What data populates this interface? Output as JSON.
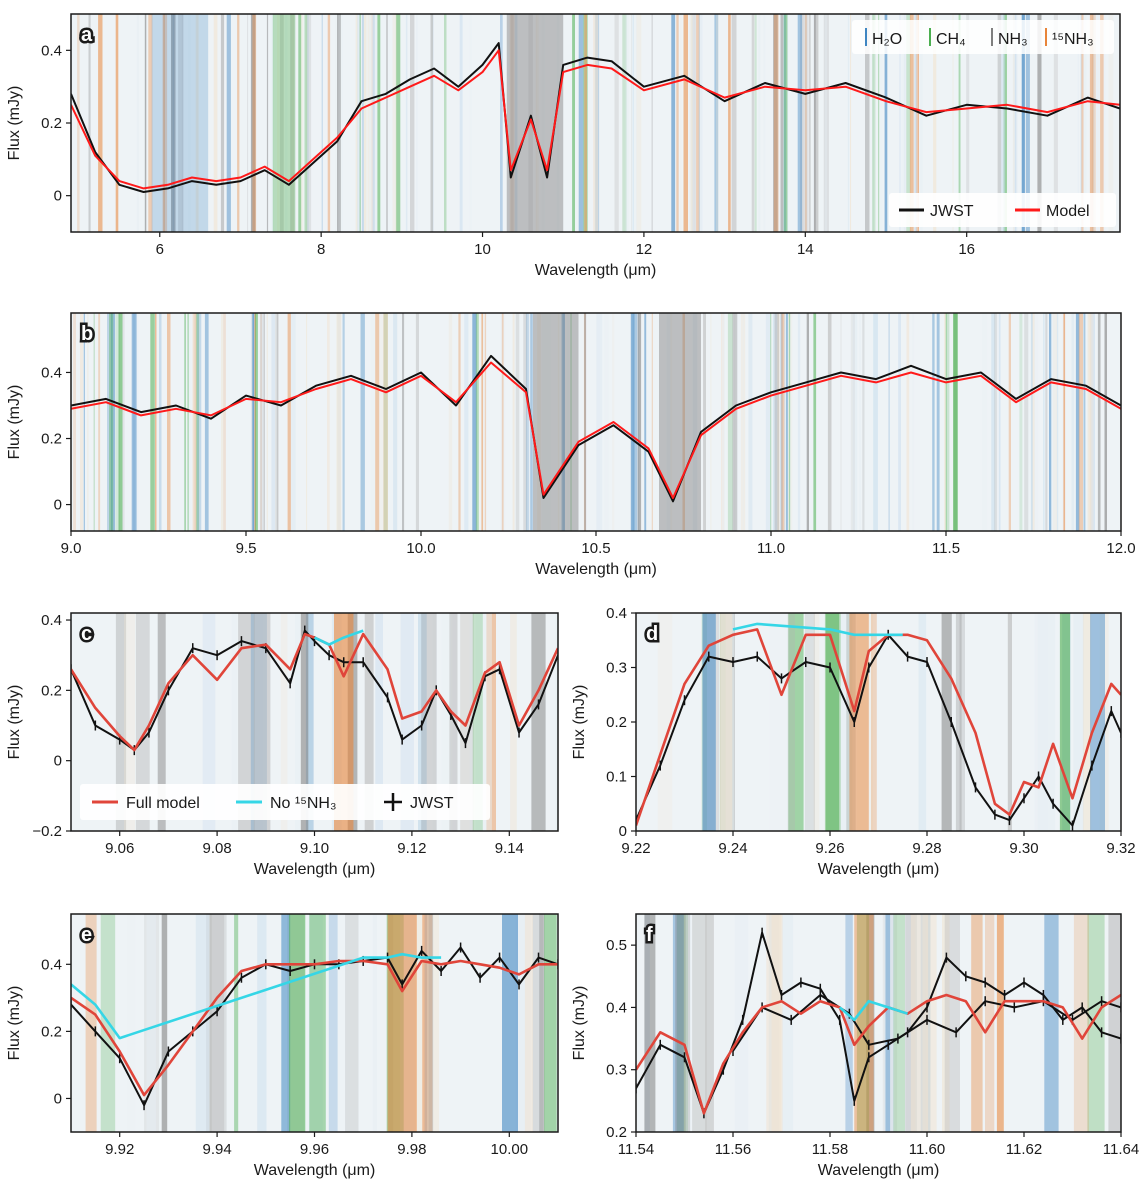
{
  "colors": {
    "h2o": "#3f86c2",
    "ch4": "#4caf50",
    "nh3": "#7f7f7f",
    "n15h3": "#e8853a",
    "jwst": "#111111",
    "model": "#ff1a1a",
    "full_model": "#e0453a",
    "no15": "#35d6e6"
  },
  "chart_data": [
    {
      "panel": "a",
      "type": "line",
      "xlabel": "Wavelength (μm)",
      "ylabel": "Flux (mJy)",
      "xlim": [
        4.9,
        17.9
      ],
      "ylim": [
        -0.1,
        0.5
      ],
      "xticks": [
        "6",
        "8",
        "10",
        "12",
        "14",
        "16"
      ],
      "yticks": [
        "0",
        "0.2",
        "0.4"
      ],
      "top_legend": [
        "H₂O",
        "CH₄",
        "NH₃",
        "¹⁵NH₃"
      ],
      "legend": [
        "JWST",
        "Model"
      ],
      "series": [
        {
          "name": "JWST",
          "x": [
            4.9,
            5.2,
            5.5,
            5.8,
            6.1,
            6.4,
            6.7,
            7.0,
            7.3,
            7.6,
            7.9,
            8.2,
            8.5,
            8.8,
            9.1,
            9.4,
            9.7,
            10.0,
            10.2,
            10.35,
            10.6,
            10.8,
            11.0,
            11.3,
            11.6,
            12.0,
            12.5,
            13.0,
            13.5,
            14.0,
            14.5,
            15.0,
            15.5,
            16.0,
            16.5,
            17.0,
            17.5,
            17.9
          ],
          "y": [
            0.28,
            0.12,
            0.03,
            0.01,
            0.02,
            0.04,
            0.03,
            0.04,
            0.07,
            0.03,
            0.09,
            0.15,
            0.26,
            0.28,
            0.32,
            0.35,
            0.3,
            0.36,
            0.42,
            0.05,
            0.22,
            0.05,
            0.36,
            0.38,
            0.37,
            0.3,
            0.33,
            0.26,
            0.31,
            0.28,
            0.31,
            0.27,
            0.22,
            0.25,
            0.24,
            0.22,
            0.27,
            0.24
          ]
        },
        {
          "name": "Model",
          "x": [
            4.9,
            5.2,
            5.5,
            5.8,
            6.1,
            6.4,
            6.7,
            7.0,
            7.3,
            7.6,
            7.9,
            8.2,
            8.5,
            8.8,
            9.1,
            9.4,
            9.7,
            10.0,
            10.2,
            10.35,
            10.6,
            10.8,
            11.0,
            11.3,
            11.6,
            12.0,
            12.5,
            13.0,
            13.5,
            14.0,
            14.5,
            15.0,
            15.5,
            16.0,
            16.5,
            17.0,
            17.5,
            17.9
          ],
          "y": [
            0.25,
            0.11,
            0.04,
            0.02,
            0.03,
            0.05,
            0.04,
            0.05,
            0.08,
            0.04,
            0.1,
            0.16,
            0.24,
            0.27,
            0.3,
            0.33,
            0.29,
            0.34,
            0.4,
            0.07,
            0.21,
            0.07,
            0.34,
            0.36,
            0.35,
            0.29,
            0.32,
            0.27,
            0.3,
            0.29,
            0.3,
            0.26,
            0.23,
            0.24,
            0.25,
            0.23,
            0.26,
            0.25
          ]
        }
      ]
    },
    {
      "panel": "b",
      "type": "line",
      "xlabel": "Wavelength (μm)",
      "ylabel": "Flux (mJy)",
      "xlim": [
        9.0,
        12.0
      ],
      "ylim": [
        -0.08,
        0.58
      ],
      "xticks": [
        "9.0",
        "9.5",
        "10.0",
        "10.5",
        "11.0",
        "11.5",
        "12.0"
      ],
      "yticks": [
        "0",
        "0.2",
        "0.4"
      ],
      "series": [
        {
          "name": "JWST",
          "x": [
            9.0,
            9.1,
            9.2,
            9.3,
            9.4,
            9.5,
            9.6,
            9.7,
            9.8,
            9.9,
            10.0,
            10.1,
            10.2,
            10.3,
            10.35,
            10.45,
            10.55,
            10.65,
            10.72,
            10.8,
            10.9,
            11.0,
            11.1,
            11.2,
            11.3,
            11.4,
            11.5,
            11.6,
            11.7,
            11.8,
            11.9,
            12.0
          ],
          "y": [
            0.3,
            0.32,
            0.28,
            0.3,
            0.26,
            0.33,
            0.3,
            0.36,
            0.39,
            0.35,
            0.4,
            0.3,
            0.45,
            0.35,
            0.02,
            0.18,
            0.24,
            0.16,
            0.01,
            0.22,
            0.3,
            0.34,
            0.37,
            0.4,
            0.38,
            0.42,
            0.38,
            0.4,
            0.32,
            0.38,
            0.36,
            0.3
          ]
        },
        {
          "name": "Model",
          "x": [
            9.0,
            9.1,
            9.2,
            9.3,
            9.4,
            9.5,
            9.6,
            9.7,
            9.8,
            9.9,
            10.0,
            10.1,
            10.2,
            10.3,
            10.35,
            10.45,
            10.55,
            10.65,
            10.72,
            10.8,
            10.9,
            11.0,
            11.1,
            11.2,
            11.3,
            11.4,
            11.5,
            11.6,
            11.7,
            11.8,
            11.9,
            12.0
          ],
          "y": [
            0.29,
            0.31,
            0.27,
            0.29,
            0.27,
            0.32,
            0.31,
            0.35,
            0.38,
            0.34,
            0.39,
            0.31,
            0.43,
            0.34,
            0.03,
            0.19,
            0.25,
            0.17,
            0.02,
            0.21,
            0.29,
            0.33,
            0.36,
            0.39,
            0.37,
            0.4,
            0.37,
            0.39,
            0.31,
            0.37,
            0.35,
            0.29
          ]
        }
      ]
    },
    {
      "panel": "c",
      "type": "line",
      "xlabel": "Wavelength (μm)",
      "ylabel": "Flux (mJy)",
      "xlim": [
        9.05,
        9.15
      ],
      "ylim": [
        -0.2,
        0.42
      ],
      "xticks": [
        "9.06",
        "9.08",
        "9.10",
        "9.12",
        "9.14"
      ],
      "yticks": [
        "−0.2",
        "0",
        "0.2",
        "0.4"
      ],
      "legend": [
        "Full model",
        "No ¹⁵NH₃",
        "JWST"
      ],
      "series": [
        {
          "name": "JWST",
          "x": [
            9.05,
            9.055,
            9.06,
            9.063,
            9.066,
            9.07,
            9.075,
            9.08,
            9.085,
            9.09,
            9.095,
            9.098,
            9.1,
            9.103,
            9.106,
            9.11,
            9.115,
            9.118,
            9.122,
            9.125,
            9.128,
            9.131,
            9.135,
            9.138,
            9.142,
            9.146,
            9.15
          ],
          "y": [
            0.26,
            0.1,
            0.06,
            0.03,
            0.08,
            0.2,
            0.32,
            0.3,
            0.34,
            0.32,
            0.22,
            0.37,
            0.34,
            0.3,
            0.28,
            0.28,
            0.18,
            0.06,
            0.1,
            0.2,
            0.13,
            0.05,
            0.24,
            0.26,
            0.08,
            0.16,
            0.3
          ]
        },
        {
          "name": "Full model",
          "x": [
            9.05,
            9.055,
            9.06,
            9.063,
            9.066,
            9.07,
            9.075,
            9.08,
            9.085,
            9.09,
            9.095,
            9.098,
            9.1,
            9.103,
            9.106,
            9.11,
            9.115,
            9.118,
            9.122,
            9.125,
            9.128,
            9.131,
            9.135,
            9.138,
            9.142,
            9.146,
            9.15
          ],
          "y": [
            0.26,
            0.15,
            0.07,
            0.03,
            0.1,
            0.22,
            0.3,
            0.23,
            0.32,
            0.33,
            0.26,
            0.36,
            0.35,
            0.33,
            0.24,
            0.36,
            0.26,
            0.12,
            0.14,
            0.2,
            0.14,
            0.1,
            0.25,
            0.28,
            0.1,
            0.2,
            0.32
          ]
        },
        {
          "name": "No ¹⁵NH₃",
          "x": [
            9.1,
            9.103,
            9.106,
            9.11
          ],
          "y": [
            0.35,
            0.33,
            0.35,
            0.37
          ]
        }
      ]
    },
    {
      "panel": "d",
      "type": "line",
      "xlabel": "Wavelength (μm)",
      "ylabel": "Flux (mJy)",
      "xlim": [
        9.22,
        9.32
      ],
      "ylim": [
        0,
        0.4
      ],
      "xticks": [
        "9.22",
        "9.24",
        "9.26",
        "9.28",
        "9.30",
        "9.32"
      ],
      "yticks": [
        "0",
        "0.1",
        "0.2",
        "0.3",
        "0.4"
      ],
      "series": [
        {
          "name": "JWST",
          "x": [
            9.22,
            9.225,
            9.23,
            9.235,
            9.24,
            9.245,
            9.25,
            9.255,
            9.26,
            9.265,
            9.268,
            9.272,
            9.276,
            9.28,
            9.285,
            9.29,
            9.294,
            9.297,
            9.3,
            9.303,
            9.306,
            9.31,
            9.314,
            9.318,
            9.32
          ],
          "y": [
            0.02,
            0.12,
            0.24,
            0.32,
            0.31,
            0.32,
            0.28,
            0.31,
            0.3,
            0.2,
            0.3,
            0.36,
            0.32,
            0.31,
            0.2,
            0.08,
            0.03,
            0.02,
            0.06,
            0.1,
            0.05,
            0.01,
            0.12,
            0.22,
            0.18
          ]
        },
        {
          "name": "Full model",
          "x": [
            9.22,
            9.225,
            9.23,
            9.235,
            9.24,
            9.245,
            9.25,
            9.255,
            9.26,
            9.265,
            9.268,
            9.272,
            9.276,
            9.28,
            9.285,
            9.29,
            9.294,
            9.297,
            9.3,
            9.303,
            9.306,
            9.31,
            9.314,
            9.318,
            9.32
          ],
          "y": [
            0.01,
            0.14,
            0.27,
            0.34,
            0.36,
            0.37,
            0.25,
            0.36,
            0.36,
            0.22,
            0.33,
            0.36,
            0.36,
            0.35,
            0.28,
            0.18,
            0.05,
            0.03,
            0.09,
            0.08,
            0.16,
            0.06,
            0.18,
            0.27,
            0.25
          ]
        },
        {
          "name": "No ¹⁵NH₃",
          "x": [
            9.24,
            9.245,
            9.26,
            9.265,
            9.27,
            9.275
          ],
          "y": [
            0.37,
            0.38,
            0.37,
            0.36,
            0.36,
            0.36
          ]
        }
      ]
    },
    {
      "panel": "e",
      "type": "line",
      "xlabel": "Wavelength (μm)",
      "ylabel": "Flux (mJy)",
      "xlim": [
        9.91,
        10.01
      ],
      "ylim": [
        -0.1,
        0.55
      ],
      "xticks": [
        "9.92",
        "9.94",
        "9.96",
        "9.98",
        "10.00"
      ],
      "yticks": [
        "0",
        "0.2",
        "0.4"
      ],
      "series": [
        {
          "name": "JWST",
          "x": [
            9.91,
            9.915,
            9.92,
            9.925,
            9.93,
            9.935,
            9.94,
            9.945,
            9.95,
            9.955,
            9.96,
            9.965,
            9.97,
            9.975,
            9.978,
            9.982,
            9.986,
            9.99,
            9.994,
            9.998,
            10.002,
            10.006,
            10.01
          ],
          "y": [
            0.28,
            0.2,
            0.12,
            -0.02,
            0.14,
            0.2,
            0.26,
            0.36,
            0.4,
            0.38,
            0.4,
            0.4,
            0.41,
            0.42,
            0.34,
            0.44,
            0.38,
            0.45,
            0.36,
            0.42,
            0.34,
            0.42,
            0.4
          ]
        },
        {
          "name": "Full model",
          "x": [
            9.91,
            9.915,
            9.92,
            9.925,
            9.93,
            9.935,
            9.94,
            9.945,
            9.95,
            9.955,
            9.96,
            9.965,
            9.97,
            9.975,
            9.978,
            9.982,
            9.986,
            9.99,
            9.994,
            9.998,
            10.002,
            10.006,
            10.01
          ],
          "y": [
            0.3,
            0.25,
            0.14,
            0.01,
            0.1,
            0.2,
            0.3,
            0.38,
            0.4,
            0.4,
            0.4,
            0.41,
            0.41,
            0.4,
            0.32,
            0.41,
            0.4,
            0.41,
            0.4,
            0.39,
            0.37,
            0.4,
            0.4
          ]
        },
        {
          "name": "No ¹⁵NH₃",
          "x": [
            9.91,
            9.915,
            9.92,
            9.97,
            9.975,
            9.978,
            9.982,
            9.986
          ],
          "y": [
            0.34,
            0.28,
            0.18,
            0.42,
            0.42,
            0.43,
            0.42,
            0.42
          ]
        }
      ]
    },
    {
      "panel": "f",
      "type": "line",
      "xlabel": "Wavelength (μm)",
      "ylabel": "Flux (mJy)",
      "xlim": [
        11.54,
        11.64
      ],
      "ylim": [
        0.2,
        0.55
      ],
      "xticks": [
        "11.54",
        "11.56",
        "11.58",
        "11.60",
        "11.62",
        "11.64"
      ],
      "yticks": [
        "0.2",
        "0.3",
        "0.4",
        "0.5"
      ],
      "series": [
        {
          "name": "JWST",
          "x": [
            11.54,
            11.545,
            11.55,
            11.554,
            11.558,
            11.562,
            11.566,
            11.57,
            11.574,
            11.578,
            11.582,
            11.585,
            11.588,
            11.592,
            11.596,
            11.6,
            11.604,
            11.608,
            11.612,
            11.616,
            11.62,
            11.624,
            11.628,
            11.632,
            11.636,
            11.64
          ],
          "y": [
            0.27,
            0.34,
            0.32,
            0.23,
            0.3,
            0.38,
            0.52,
            0.42,
            0.44,
            0.43,
            0.38,
            0.25,
            0.32,
            0.34,
            0.36,
            0.4,
            0.48,
            0.45,
            0.44,
            0.42,
            0.44,
            0.42,
            0.38,
            0.4,
            0.36,
            0.35
          ]
        },
        {
          "name": "JWST",
          "x": [
            11.56,
            11.566,
            11.572,
            11.578,
            11.584,
            11.588,
            11.594,
            11.6,
            11.606,
            11.612,
            11.618,
            11.624,
            11.63,
            11.636,
            11.64
          ],
          "y": [
            0.33,
            0.4,
            0.38,
            0.42,
            0.39,
            0.34,
            0.35,
            0.38,
            0.36,
            0.41,
            0.4,
            0.41,
            0.38,
            0.41,
            0.4
          ]
        },
        {
          "name": "Full model",
          "x": [
            11.54,
            11.545,
            11.55,
            11.554,
            11.558,
            11.562,
            11.566,
            11.57,
            11.574,
            11.578,
            11.582,
            11.585,
            11.588,
            11.592,
            11.596,
            11.6,
            11.604,
            11.608,
            11.612,
            11.616,
            11.62,
            11.624,
            11.628,
            11.632,
            11.636,
            11.64
          ],
          "y": [
            0.3,
            0.36,
            0.34,
            0.23,
            0.31,
            0.36,
            0.4,
            0.41,
            0.39,
            0.41,
            0.4,
            0.34,
            0.37,
            0.4,
            0.39,
            0.41,
            0.42,
            0.41,
            0.36,
            0.41,
            0.41,
            0.41,
            0.4,
            0.35,
            0.4,
            0.42
          ]
        },
        {
          "name": "No ¹⁵NH₃",
          "x": [
            11.582,
            11.585,
            11.588,
            11.592,
            11.596
          ],
          "y": [
            0.4,
            0.38,
            0.41,
            0.4,
            0.39
          ]
        }
      ]
    }
  ]
}
